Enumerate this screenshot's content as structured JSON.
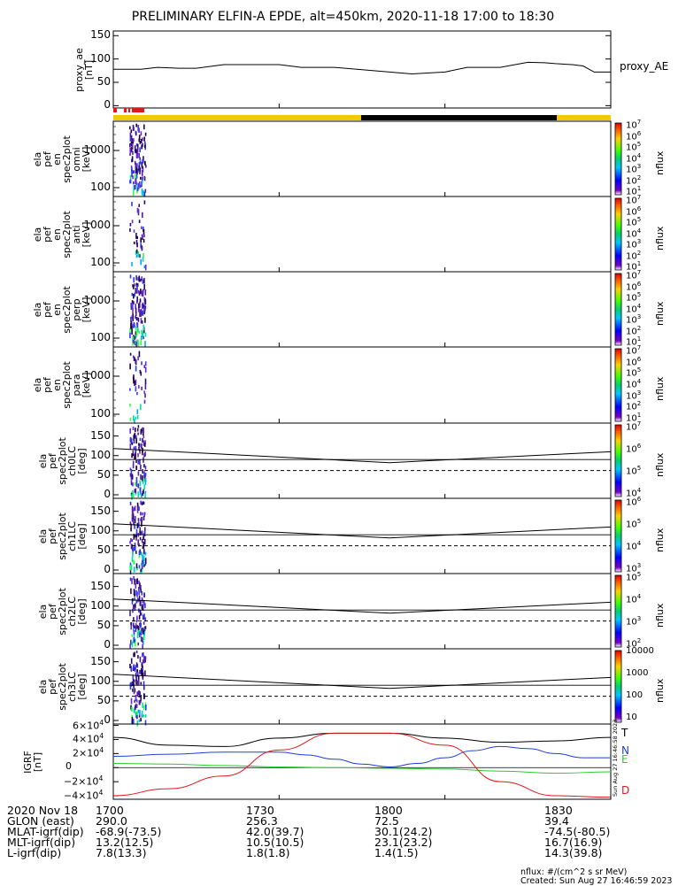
{
  "title": "PRELIMINARY ELFIN-A EPDE, alt=450km, 2020-11-18 17:00 to 18:30",
  "chart_data": [
    {
      "type": "line",
      "name": "proxy_ae",
      "ylabel": [
        "proxy_ae",
        "[nT]"
      ],
      "legend": "proxy_AE",
      "yticks": [
        "150",
        "100",
        "50",
        "0"
      ],
      "ylim": [
        -5,
        160
      ],
      "x_minutes": [
        0,
        5,
        8,
        12,
        15,
        20,
        30,
        34,
        40,
        50,
        54,
        60,
        64,
        70,
        75,
        78,
        80,
        83,
        85,
        87,
        90
      ],
      "y": [
        78,
        78,
        82,
        80,
        80,
        88,
        88,
        82,
        82,
        72,
        68,
        72,
        82,
        82,
        93,
        92,
        90,
        88,
        85,
        72,
        72
      ]
    },
    {
      "type": "heatmap",
      "name": "spec-omni",
      "ylabel": [
        "ela",
        "pef",
        "en",
        "spec2plot",
        "omni",
        "[keV]"
      ],
      "yticks": [
        "1000",
        "100"
      ],
      "colorbar": {
        "label": "nflux",
        "ticks": [
          "10^7",
          "10^6",
          "10^5",
          "10^4",
          "10^3",
          "10^2",
          "10^1"
        ]
      }
    },
    {
      "type": "heatmap",
      "name": "spec-anti",
      "ylabel": [
        "ela",
        "pef",
        "en",
        "spec2plot",
        "anti",
        "[keV]"
      ],
      "yticks": [
        "1000",
        "100"
      ],
      "colorbar": {
        "label": "nflux",
        "ticks": [
          "10^7",
          "10^6",
          "10^5",
          "10^4",
          "10^3",
          "10^2",
          "10^1"
        ]
      }
    },
    {
      "type": "heatmap",
      "name": "spec-perp",
      "ylabel": [
        "ela",
        "pef",
        "en",
        "spec2plot",
        "perp",
        "[keV]"
      ],
      "yticks": [
        "1000",
        "100"
      ],
      "colorbar": {
        "label": "nflux",
        "ticks": [
          "10^7",
          "10^6",
          "10^5",
          "10^4",
          "10^3",
          "10^2",
          "10^1"
        ]
      }
    },
    {
      "type": "heatmap",
      "name": "spec-para",
      "ylabel": [
        "ela",
        "pef",
        "en",
        "spec2plot",
        "para",
        "[keV]"
      ],
      "yticks": [
        "1000",
        "100"
      ],
      "colorbar": {
        "label": "nflux",
        "ticks": [
          "10^7",
          "10^6",
          "10^5",
          "10^4",
          "10^3",
          "10^2",
          "10^1"
        ]
      }
    },
    {
      "type": "heatmap",
      "name": "ch0LC",
      "ylabel": [
        "ela",
        "pef",
        "spec2plot",
        "ch0LC",
        "[deg]"
      ],
      "yticks": [
        "150",
        "100",
        "50",
        "0"
      ],
      "colorbar": {
        "label": "nflux",
        "ticks": [
          "10^7",
          "10^6",
          "10^5",
          "10^4"
        ]
      }
    },
    {
      "type": "heatmap",
      "name": "ch1LC",
      "ylabel": [
        "ela",
        "pef",
        "spec2plot",
        "ch1LC",
        "[deg]"
      ],
      "yticks": [
        "150",
        "100",
        "50",
        "0"
      ],
      "colorbar": {
        "label": "nflux",
        "ticks": [
          "10^6",
          "10^5",
          "10^4",
          "10^3"
        ]
      }
    },
    {
      "type": "heatmap",
      "name": "ch2LC",
      "ylabel": [
        "ela",
        "pef",
        "spec2plot",
        "ch2LC",
        "[deg]"
      ],
      "yticks": [
        "150",
        "100",
        "50",
        "0"
      ],
      "colorbar": {
        "label": "nflux",
        "ticks": [
          "10^5",
          "10^4",
          "10^3",
          "10^2"
        ]
      }
    },
    {
      "type": "heatmap",
      "name": "ch3LC",
      "ylabel": [
        "ela",
        "pef",
        "spec2plot",
        "ch3LC",
        "[deg]"
      ],
      "yticks": [
        "150",
        "100",
        "50",
        "0"
      ],
      "colorbar": {
        "label": "nflux",
        "ticks": [
          "10000",
          "1000",
          "100",
          "10"
        ]
      }
    },
    {
      "type": "line",
      "name": "IGRF",
      "ylabel": [
        "IGRF",
        "[nT]"
      ],
      "yticks": [
        "6×10^4",
        "4×10^4",
        "2×10^4",
        "0",
        "−2×10^4",
        "−4×10^4"
      ],
      "ylim": [
        -45000,
        62000
      ],
      "side_note": "Sun Aug 27 16:46:58 2023",
      "series": [
        {
          "name": "T",
          "color": "#000000",
          "x": [
            0,
            10,
            20,
            30,
            40,
            50,
            60,
            70,
            80,
            90
          ],
          "y": [
            43000,
            32000,
            30000,
            42000,
            49000,
            49000,
            42000,
            36000,
            38000,
            43000
          ]
        },
        {
          "name": "N",
          "color": "#1f3fd8",
          "x": [
            0,
            10,
            20,
            30,
            35,
            40,
            45,
            50,
            55,
            60,
            65,
            70,
            75,
            80,
            85,
            90
          ],
          "y": [
            16000,
            19000,
            22000,
            22000,
            18000,
            12000,
            5000,
            1000,
            6000,
            14000,
            24000,
            30000,
            27000,
            20000,
            14000,
            14000
          ]
        },
        {
          "name": "E",
          "color": "#2ccc2c",
          "x": [
            0,
            10,
            20,
            30,
            40,
            50,
            60,
            70,
            80,
            90
          ],
          "y": [
            6000,
            5000,
            3000,
            1000,
            0,
            -1000,
            -2000,
            -5000,
            -8000,
            -6000
          ]
        },
        {
          "name": "D",
          "color": "#e01818",
          "x": [
            0,
            10,
            20,
            30,
            40,
            50,
            60,
            70,
            80,
            90
          ],
          "y": [
            -40000,
            -30000,
            -12000,
            25000,
            49000,
            49000,
            32000,
            -20000,
            -40000,
            -42000
          ]
        }
      ]
    }
  ],
  "footer": {
    "rows": [
      [
        "2020 Nov 18",
        "1700",
        "1730",
        "1800",
        "1830"
      ],
      [
        "GLON (east)",
        "290.0",
        "256.3",
        "72.5",
        "39.4"
      ],
      [
        "MLAT-igrf(dip)",
        "-68.9(-73.5)",
        "42.0(39.7)",
        "30.1(24.2)",
        "-74.5(-80.5)"
      ],
      [
        "MLT-igrf(dip)",
        "13.2(12.5)",
        "10.5(10.5)",
        "23.1(23.2)",
        "16.7(16.9)"
      ],
      [
        "L-igrf(dip)",
        "7.8(13.3)",
        "1.8(1.8)",
        "1.4(1.5)",
        "14.3(39.8)"
      ]
    ],
    "units_note": "nflux: #/(cm^2 s sr MeV)",
    "created_note": "Created: Sun Aug 27 16:46:59 2023"
  },
  "colors": {
    "sunlight": "#f5c800",
    "shadow": "#000000",
    "science_zone": "#e01818"
  }
}
